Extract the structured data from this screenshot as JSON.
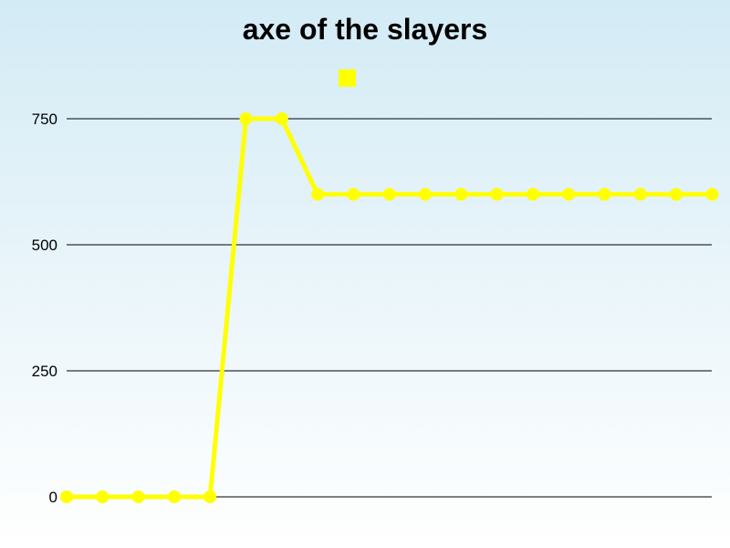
{
  "chart_data": {
    "type": "line",
    "title": "axe of the slayers",
    "xlabel": "",
    "ylabel": "",
    "ylim": [
      0,
      750
    ],
    "yticks": [
      "0",
      "250",
      "500",
      "750"
    ],
    "grid": true,
    "legend_position": "top",
    "series": [
      {
        "name": "",
        "color": "#ffff00",
        "values": [
          0,
          0,
          0,
          0,
          0,
          750,
          750,
          600,
          600,
          600,
          600,
          600,
          600,
          600,
          600,
          600,
          600,
          600,
          600
        ]
      }
    ]
  }
}
